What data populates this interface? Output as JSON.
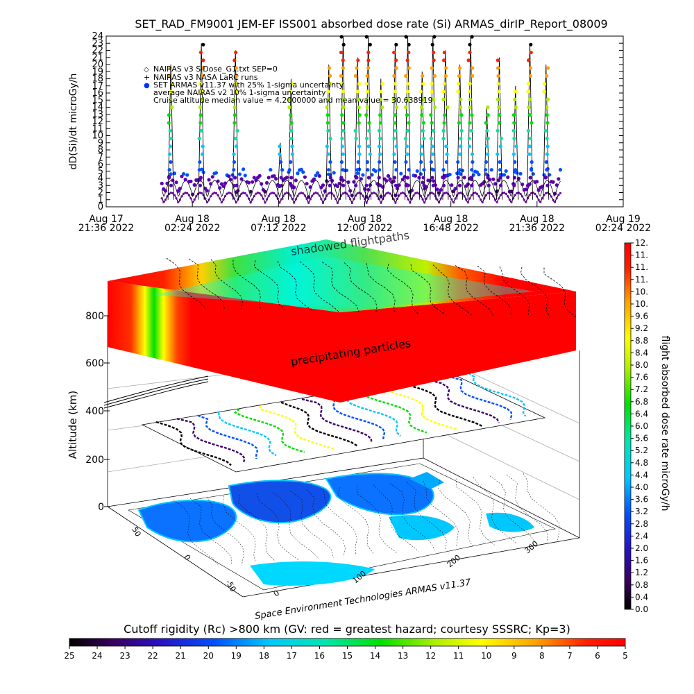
{
  "chart_data": [
    {
      "type": "line",
      "title": "SET_RAD_FM9001  JEM-EF ISS001 absorbed dose rate (Si) ARMAS_dirIP_Report_08009",
      "ylabel": "dD(Si)/dt microGy/h",
      "ylim": [
        0,
        24
      ],
      "y_ticks": [
        "0",
        "1",
        "2",
        "3",
        "4",
        "5",
        "6",
        "7",
        "8",
        "9",
        "10",
        "11",
        "12",
        "13",
        "14",
        "15",
        "16",
        "17",
        "18",
        "19",
        "20",
        "21",
        "22",
        "23",
        "24"
      ],
      "x_ticks": [
        {
          "line1": "Aug 17",
          "line2": "21:36 2022"
        },
        {
          "line1": "Aug 18",
          "line2": "02:24 2022"
        },
        {
          "line1": "Aug 18",
          "line2": "07:12 2022"
        },
        {
          "line1": "Aug 18",
          "line2": "12:00 2022"
        },
        {
          "line1": "Aug 18",
          "line2": "16:48 2022"
        },
        {
          "line1": "Aug 18",
          "line2": "21:36 2022"
        },
        {
          "line1": "Aug 19",
          "line2": "02:24 2022"
        }
      ],
      "xlim_hours": [
        0,
        28.8
      ],
      "data_hours": [
        3.1,
        25.3
      ],
      "legend": [
        {
          "marker": "◇",
          "text": "NAIRAS v3 SiDose_G1.txt SEP=0"
        },
        {
          "marker": "+",
          "text": "NAIRAS v3 NASA LaRC runs"
        },
        {
          "marker": "●",
          "text": "SET ARMAS v11.37 with 25% 1-sigma uncertainty"
        },
        {
          "marker": "",
          "text": "average NAIRAS v2 10% 1-sigma uncertainty"
        },
        {
          "marker": "",
          "text": "Cruise altitude median value = 4.2000000 and mean value = 30.638919"
        }
      ],
      "spike_hours": [
        3.6,
        5.3,
        7.2,
        9.7,
        10.3,
        12.4,
        13.2,
        14.0,
        14.6,
        15.3,
        16.1,
        16.8,
        17.6,
        18.2,
        18.9,
        19.7,
        20.3,
        21.2,
        21.9,
        22.8,
        23.6,
        24.5
      ],
      "spike_values": [
        20,
        23,
        22,
        9,
        18,
        20,
        24,
        21,
        24,
        18,
        23,
        24,
        19,
        24,
        22,
        20,
        24,
        14,
        21,
        17,
        23,
        20
      ]
    },
    {
      "type": "heatmap",
      "zlabel": "Altitude (km)",
      "z_ticks": [
        "0",
        "200",
        "400",
        "600",
        "800"
      ],
      "lat_ticks": [
        "50",
        "0",
        "-50"
      ],
      "lon_ticks": [
        "0",
        "100",
        "200",
        "300"
      ],
      "annotations": [
        "shadowed flightpaths",
        "precipitating particles"
      ],
      "credit": "Space Environment Technologies ARMAS v11.37"
    },
    {
      "type": "colorbar",
      "orientation": "vertical",
      "label": "flight absorbed dose rate microGy/h",
      "ticks": [
        "0.0",
        "0.4",
        "0.8",
        "1.2",
        "1.6",
        "2.0",
        "2.4",
        "2.8",
        "3.2",
        "3.6",
        "4.0",
        "4.4",
        "4.8",
        "5.2",
        "5.6",
        "6.0",
        "6.4",
        "6.8",
        "7.2",
        "7.6",
        "8.0",
        "8.4",
        "8.8",
        "9.2",
        "9.6",
        "10.",
        "10.",
        "11.",
        "11.",
        "11.",
        "12."
      ]
    },
    {
      "type": "colorbar",
      "orientation": "horizontal",
      "label": "Cutoff rigidity (Rc) >800 km (GV: red = greatest hazard; courtesy SSSRC; Kp=3)",
      "ticks": [
        "25",
        "24",
        "23",
        "22",
        "21",
        "20",
        "19",
        "18",
        "17",
        "16",
        "15",
        "14",
        "13",
        "12",
        "11",
        "10",
        "9",
        "8",
        "7",
        "6",
        "5"
      ]
    }
  ]
}
